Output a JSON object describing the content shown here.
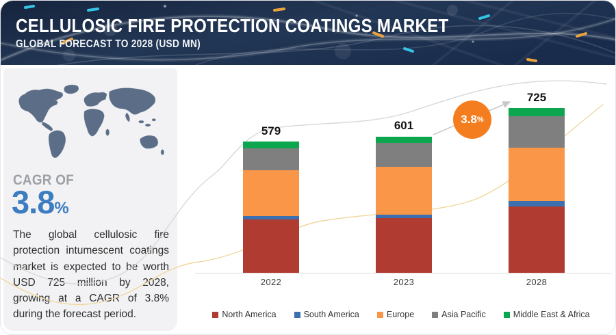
{
  "header": {
    "title": "CELLULOSIC FIRE PROTECTION COATINGS MARKET",
    "subtitle": "GLOBAL FORECAST TO 2028 (USD MN)"
  },
  "sidebar": {
    "cagr_label": "CAGR OF",
    "cagr_value": "3.8",
    "cagr_unit": "%",
    "summary": "The global cellulosic fire protection intumescent coatings market is expected to be worth USD 725 million by 2028, growing at a CAGR of 3.8% during the forecast period."
  },
  "badge": {
    "value": "3.8",
    "unit": "%"
  },
  "chart_data": {
    "type": "bar",
    "subtype": "stacked",
    "title": "Cellulosic Fire Protection Coatings Market",
    "unit": "USD MN",
    "categories": [
      "2022",
      "2023",
      "2028"
    ],
    "totals": [
      579,
      601,
      725
    ],
    "series": [
      {
        "name": "North America",
        "color": "#b03b31",
        "values": [
          235,
          242,
          293
        ]
      },
      {
        "name": "South America",
        "color": "#3c6fb0",
        "values": [
          15,
          15,
          24
        ]
      },
      {
        "name": "Europe",
        "color": "#f99648",
        "values": [
          202,
          209,
          234
        ]
      },
      {
        "name": "Asia Pacific",
        "color": "#7f7f7f",
        "values": [
          97,
          107,
          140
        ]
      },
      {
        "name": "Middle East & Africa",
        "color": "#0ba64e",
        "values": [
          30,
          28,
          34
        ]
      }
    ],
    "cagr_annotation": "3.8%",
    "legend_position": "bottom",
    "grid": false,
    "ylim": [
      0,
      760
    ]
  },
  "colors": {
    "header_navy": "#1b2a47",
    "cagr_blue": "#3c7cc1",
    "badge_orange": "#f47e1f",
    "sidebar_bg": "#f2f2f4",
    "map_fill": "#5c6e87",
    "axis_line": "#dcdcdc",
    "wave_gray": "#d8d8d8",
    "wave_yellow": "#efd79e"
  }
}
